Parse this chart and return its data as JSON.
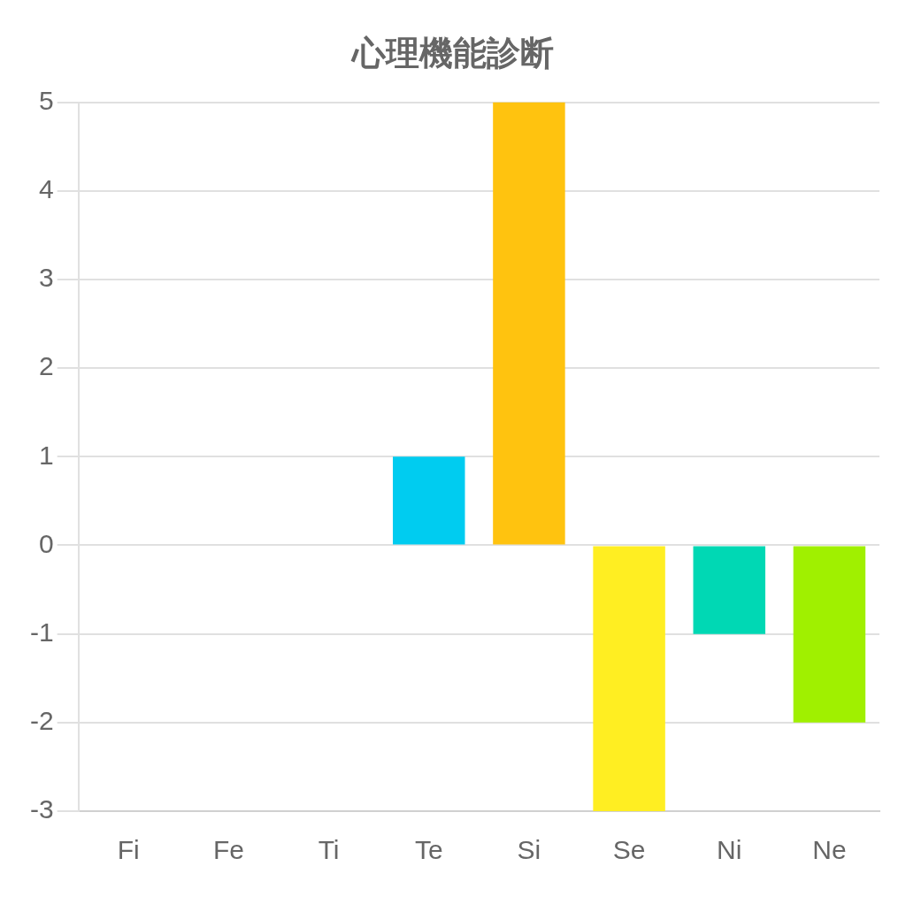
{
  "chart_data": {
    "type": "bar",
    "title": "心理機能診断",
    "categories": [
      "Fi",
      "Fe",
      "Ti",
      "Te",
      "Si",
      "Se",
      "Ni",
      "Ne"
    ],
    "values": [
      0,
      0,
      0,
      1,
      5,
      -3,
      -1,
      -2
    ],
    "colors": [
      "#ff6384",
      "#36a2eb",
      "#9966ff",
      "#00ccf0",
      "#ffc30f",
      "#ffee22",
      "#00d8b4",
      "#a0f000"
    ],
    "ylim": [
      -3,
      5
    ],
    "yticks": [
      -3,
      -2,
      -1,
      0,
      1,
      2,
      3,
      4,
      5
    ],
    "grid": "y",
    "legend": false
  }
}
